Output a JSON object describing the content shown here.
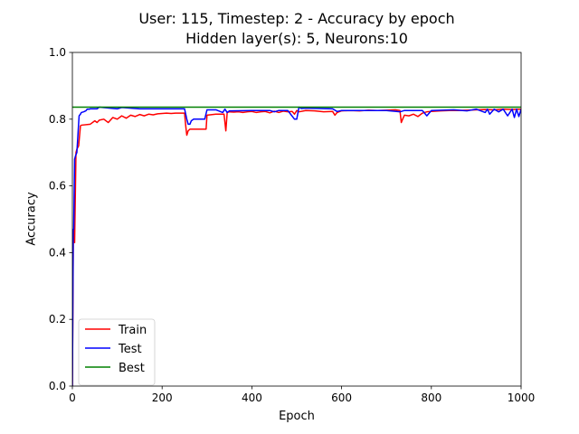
{
  "chart_data": {
    "type": "line",
    "title": "User: 115, Timestep: 2 - Accuracy by epoch",
    "subtitle": "Hidden layer(s): 5, Neurons:10",
    "xlabel": "Epoch",
    "ylabel": "Accuracy",
    "xlim": [
      0,
      1000
    ],
    "ylim": [
      0,
      1.0
    ],
    "xticks": [
      "0",
      "200",
      "400",
      "600",
      "800",
      "1000"
    ],
    "xtick_values": [
      0,
      200,
      400,
      600,
      800,
      1000
    ],
    "yticks": [
      "0.0",
      "0.2",
      "0.4",
      "0.6",
      "0.8",
      "1.0"
    ],
    "ytick_values": [
      0,
      0.2,
      0.4,
      0.6,
      0.8,
      1.0
    ],
    "grid": false,
    "legend_position": "lower-left",
    "series": [
      {
        "name": "Train",
        "color": "#ff0000",
        "x": [
          0,
          2,
          3,
          5,
          8,
          10,
          14,
          18,
          20,
          40,
          50,
          55,
          60,
          70,
          80,
          90,
          100,
          110,
          120,
          130,
          140,
          150,
          160,
          170,
          180,
          190,
          200,
          210,
          220,
          230,
          240,
          250,
          253,
          255,
          258,
          262,
          270,
          280,
          290,
          298,
          300,
          320,
          338,
          342,
          345,
          350,
          360,
          370,
          380,
          390,
          400,
          410,
          420,
          430,
          440,
          450,
          460,
          470,
          480,
          490,
          495,
          500,
          505,
          520,
          540,
          560,
          580,
          585,
          590,
          600,
          620,
          640,
          660,
          680,
          700,
          720,
          730,
          733,
          736,
          740,
          750,
          760,
          770,
          780,
          790,
          800,
          820,
          840,
          860,
          880,
          900,
          920,
          940,
          960,
          980,
          1000
        ],
        "y": [
          0.0,
          0.43,
          0.47,
          0.43,
          0.7,
          0.71,
          0.72,
          0.78,
          0.782,
          0.785,
          0.795,
          0.79,
          0.797,
          0.8,
          0.79,
          0.805,
          0.8,
          0.81,
          0.803,
          0.812,
          0.808,
          0.814,
          0.81,
          0.815,
          0.813,
          0.816,
          0.817,
          0.818,
          0.817,
          0.818,
          0.818,
          0.818,
          0.775,
          0.752,
          0.765,
          0.77,
          0.77,
          0.77,
          0.77,
          0.77,
          0.812,
          0.815,
          0.815,
          0.765,
          0.82,
          0.822,
          0.821,
          0.822,
          0.82,
          0.822,
          0.823,
          0.82,
          0.822,
          0.823,
          0.819,
          0.824,
          0.82,
          0.824,
          0.822,
          0.823,
          0.815,
          0.826,
          0.822,
          0.826,
          0.825,
          0.822,
          0.823,
          0.812,
          0.82,
          0.825,
          0.826,
          0.825,
          0.827,
          0.826,
          0.827,
          0.828,
          0.826,
          0.79,
          0.8,
          0.812,
          0.81,
          0.815,
          0.808,
          0.818,
          0.822,
          0.823,
          0.825,
          0.826,
          0.826,
          0.827,
          0.828,
          0.829,
          0.828,
          0.83,
          0.829,
          0.83
        ]
      },
      {
        "name": "Test",
        "color": "#0000ff",
        "x": [
          0,
          2,
          3,
          5,
          7,
          10,
          15,
          18,
          20,
          25,
          30,
          33,
          38,
          40,
          55,
          60,
          100,
          110,
          150,
          200,
          250,
          255,
          258,
          262,
          265,
          270,
          275,
          280,
          295,
          300,
          320,
          335,
          340,
          345,
          350,
          400,
          440,
          450,
          460,
          480,
          495,
          500,
          505,
          510,
          520,
          550,
          580,
          590,
          600,
          650,
          700,
          730,
          740,
          780,
          790,
          800,
          850,
          880,
          900,
          920,
          925,
          930,
          940,
          950,
          960,
          970,
          980,
          985,
          990,
          995,
          1000
        ],
        "y": [
          0.0,
          0.47,
          0.47,
          0.68,
          0.69,
          0.7,
          0.81,
          0.815,
          0.82,
          0.822,
          0.825,
          0.83,
          0.83,
          0.831,
          0.831,
          0.836,
          0.831,
          0.835,
          0.831,
          0.831,
          0.831,
          0.8,
          0.785,
          0.785,
          0.795,
          0.8,
          0.8,
          0.8,
          0.8,
          0.828,
          0.828,
          0.82,
          0.83,
          0.82,
          0.825,
          0.826,
          0.826,
          0.822,
          0.826,
          0.826,
          0.8,
          0.8,
          0.836,
          0.832,
          0.833,
          0.832,
          0.831,
          0.823,
          0.826,
          0.826,
          0.826,
          0.822,
          0.826,
          0.826,
          0.81,
          0.826,
          0.828,
          0.825,
          0.83,
          0.82,
          0.83,
          0.815,
          0.83,
          0.822,
          0.83,
          0.81,
          0.83,
          0.805,
          0.83,
          0.808,
          0.83
        ]
      },
      {
        "name": "Best",
        "color": "#008000",
        "x": [
          0,
          1000
        ],
        "y": [
          0.836,
          0.836
        ]
      }
    ]
  }
}
